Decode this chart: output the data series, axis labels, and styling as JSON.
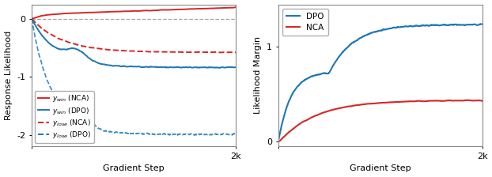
{
  "left_ylabel": "Response Likelihood",
  "right_ylabel": "Likelihood Margin",
  "xlabel": "Gradient Step",
  "x_end_label": "2k",
  "n_steps": 2000,
  "left_ylim": [
    -2.2,
    0.25
  ],
  "right_ylim": [
    -0.05,
    1.45
  ],
  "left_yticks": [
    -2,
    -1,
    0
  ],
  "right_yticks": [
    0,
    1
  ],
  "colors": {
    "red": "#d62728",
    "blue": "#1f77b4"
  },
  "legend_left": [
    {
      "label": "$y_{win}$ (NCA)",
      "color": "#d62728",
      "linestyle": "solid"
    },
    {
      "label": "$y_{win}$ (DPO)",
      "color": "#1f77b4",
      "linestyle": "solid"
    },
    {
      "label": "$y_{lose}$ (NCA)",
      "color": "#d62728",
      "linestyle": "dashed"
    },
    {
      "label": "$y_{lose}$ (DPO)",
      "color": "#1f77b4",
      "linestyle": "dashed"
    }
  ],
  "legend_right": [
    {
      "label": "DPO",
      "color": "#1f77b4",
      "linestyle": "solid"
    },
    {
      "label": "NCA",
      "color": "#d62728",
      "linestyle": "solid"
    }
  ]
}
